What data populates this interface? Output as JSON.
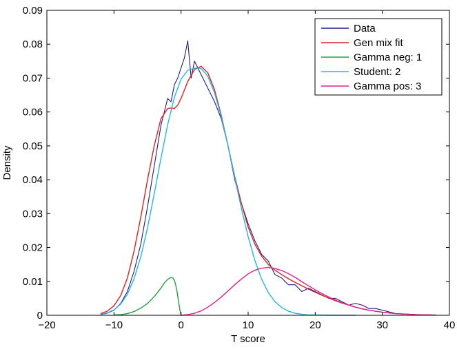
{
  "chart_data": {
    "type": "line",
    "xlabel": "T score",
    "ylabel": "Density",
    "xlim": [
      -20,
      40
    ],
    "ylim": [
      0,
      0.09
    ],
    "xticks": [
      -20,
      -10,
      0,
      10,
      20,
      30,
      40
    ],
    "xtick_labels": [
      "−20",
      "−10",
      "0",
      "10",
      "20",
      "30",
      "40"
    ],
    "yticks": [
      0,
      0.01,
      0.02,
      0.03,
      0.04,
      0.05,
      0.06,
      0.07,
      0.08,
      0.09
    ],
    "ytick_labels": [
      "0",
      "0.01",
      "0.02",
      "0.03",
      "0.04",
      "0.05",
      "0.06",
      "0.07",
      "0.08",
      "0.09"
    ],
    "grid": false,
    "legend_position": "top-right",
    "series": [
      {
        "name": "Data",
        "color": "#1a1a8c",
        "x": [
          -12,
          -11,
          -10,
          -9,
          -8,
          -7,
          -6,
          -5,
          -4,
          -3,
          -2,
          -1.5,
          -1,
          -0.5,
          0,
          0.5,
          1,
          1.5,
          2,
          2.5,
          3,
          3.5,
          4,
          5,
          6,
          7,
          8,
          9,
          10,
          11,
          12,
          13,
          14,
          15,
          16,
          17,
          18,
          19,
          20,
          21,
          22,
          23,
          24,
          25,
          26,
          27,
          28,
          29,
          30,
          31,
          32,
          33,
          34,
          35,
          36,
          37,
          38
        ],
        "y": [
          0.0002,
          0.0006,
          0.0015,
          0.0035,
          0.007,
          0.013,
          0.021,
          0.032,
          0.044,
          0.056,
          0.064,
          0.063,
          0.068,
          0.07,
          0.073,
          0.076,
          0.081,
          0.07,
          0.075,
          0.073,
          0.071,
          0.069,
          0.067,
          0.063,
          0.058,
          0.05,
          0.04,
          0.033,
          0.027,
          0.022,
          0.018,
          0.016,
          0.012,
          0.011,
          0.009,
          0.009,
          0.007,
          0.008,
          0.007,
          0.006,
          0.005,
          0.005,
          0.004,
          0.003,
          0.0035,
          0.003,
          0.002,
          0.002,
          0.0015,
          0.001,
          0.0005,
          0.0004,
          0.0003,
          0.0002,
          0.0001,
          0,
          0
        ]
      },
      {
        "name": "Gen mix fit",
        "color": "#e02020",
        "x": [
          -12,
          -11,
          -10,
          -9,
          -8,
          -7,
          -6,
          -5,
          -4,
          -3,
          -2,
          -1.5,
          -1,
          -0.5,
          0,
          1,
          2,
          3,
          4,
          5,
          6,
          7,
          8,
          9,
          10,
          11,
          12,
          13,
          14,
          15,
          16,
          17,
          18,
          19,
          20,
          21,
          22,
          23,
          24,
          25,
          26,
          27,
          28,
          29,
          30,
          31,
          32,
          33,
          34,
          35,
          36,
          37,
          38
        ],
        "y": [
          0.0005,
          0.0012,
          0.0028,
          0.0058,
          0.011,
          0.019,
          0.029,
          0.04,
          0.05,
          0.058,
          0.061,
          0.0612,
          0.061,
          0.062,
          0.064,
          0.069,
          0.0725,
          0.0735,
          0.0715,
          0.0665,
          0.059,
          0.05,
          0.041,
          0.033,
          0.026,
          0.021,
          0.0175,
          0.015,
          0.0133,
          0.012,
          0.0108,
          0.0097,
          0.0087,
          0.0077,
          0.0068,
          0.0059,
          0.0051,
          0.0043,
          0.0036,
          0.003,
          0.0024,
          0.0019,
          0.0015,
          0.0012,
          0.0009,
          0.0007,
          0.0005,
          0.0004,
          0.0003,
          0.0002,
          0.0001,
          0.0001,
          5e-05
        ]
      },
      {
        "name": "Gamma neg: 1",
        "color": "#20a040",
        "x": [
          -10,
          -9,
          -8,
          -7,
          -6,
          -5,
          -4,
          -3,
          -2.5,
          -2,
          -1.5,
          -1.2,
          -1,
          -0.8,
          -0.6,
          -0.4,
          -0.2,
          0
        ],
        "y": [
          0.0001,
          0.0002,
          0.0005,
          0.0011,
          0.0021,
          0.0035,
          0.0055,
          0.008,
          0.0095,
          0.0106,
          0.0112,
          0.011,
          0.0103,
          0.009,
          0.007,
          0.0045,
          0.0018,
          0
        ]
      },
      {
        "name": "Student: 2",
        "color": "#20b8e0",
        "x": [
          -12,
          -11,
          -10,
          -9,
          -8,
          -7,
          -6,
          -5,
          -4,
          -3,
          -2,
          -1,
          0,
          1,
          2,
          2.5,
          3,
          4,
          5,
          6,
          7,
          8,
          9,
          10,
          11,
          12,
          13,
          14,
          15,
          16,
          17,
          18,
          19,
          20,
          22,
          24,
          26
        ],
        "y": [
          0.0003,
          0.0007,
          0.0016,
          0.0033,
          0.0062,
          0.0108,
          0.0173,
          0.0258,
          0.0358,
          0.0463,
          0.0562,
          0.0643,
          0.0697,
          0.0723,
          0.0729,
          0.073,
          0.0728,
          0.0705,
          0.0656,
          0.0586,
          0.05,
          0.0407,
          0.0315,
          0.0232,
          0.0162,
          0.0107,
          0.0067,
          0.004,
          0.0023,
          0.0012,
          0.0006,
          0.0003,
          0.0001,
          0.0001,
          0,
          0,
          0
        ]
      },
      {
        "name": "Gamma pos: 3",
        "color": "#e02090",
        "x": [
          0,
          1,
          2,
          3,
          4,
          5,
          6,
          7,
          8,
          9,
          10,
          11,
          12,
          13,
          14,
          15,
          16,
          17,
          18,
          19,
          20,
          21,
          22,
          23,
          24,
          25,
          26,
          27,
          28,
          29,
          30,
          31,
          32,
          33,
          34,
          35,
          36,
          37,
          38
        ],
        "y": [
          0,
          0.0002,
          0.0006,
          0.0013,
          0.0024,
          0.0038,
          0.0054,
          0.0072,
          0.009,
          0.0107,
          0.0122,
          0.0133,
          0.0139,
          0.0141,
          0.0138,
          0.0132,
          0.0123,
          0.0112,
          0.0099,
          0.0087,
          0.0075,
          0.0064,
          0.0054,
          0.0045,
          0.0037,
          0.003,
          0.0024,
          0.0019,
          0.0015,
          0.0012,
          0.0009,
          0.0007,
          0.0005,
          0.0004,
          0.0003,
          0.0002,
          0.0001,
          0.0001,
          5e-05
        ]
      }
    ]
  }
}
